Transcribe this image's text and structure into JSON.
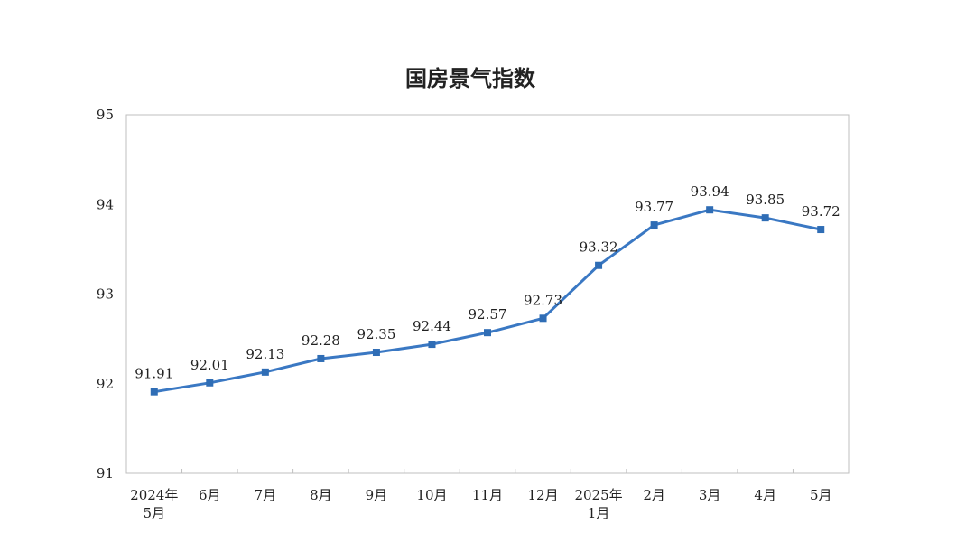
{
  "chart_data": {
    "type": "line",
    "title": "国房景气指数",
    "categories": [
      [
        "2024年",
        "5月"
      ],
      [
        "6月"
      ],
      [
        "7月"
      ],
      [
        "8月"
      ],
      [
        "9月"
      ],
      [
        "10月"
      ],
      [
        "11月"
      ],
      [
        "12月"
      ],
      [
        "2025年",
        "1月"
      ],
      [
        "2月"
      ],
      [
        "3月"
      ],
      [
        "4月"
      ],
      [
        "5月"
      ]
    ],
    "values": [
      91.91,
      92.01,
      92.13,
      92.28,
      92.35,
      92.44,
      92.57,
      92.73,
      93.32,
      93.77,
      93.94,
      93.85,
      93.72
    ],
    "value_labels": [
      "91.91",
      "92.01",
      "92.13",
      "92.28",
      "92.35",
      "92.44",
      "92.57",
      "92.73",
      "93.32",
      "93.77",
      "93.94",
      "93.85",
      "93.72"
    ],
    "ylim": [
      91,
      95
    ],
    "yticks": [
      "91",
      "92",
      "93",
      "94",
      "95"
    ],
    "grid": false,
    "legend": "none",
    "colors": {
      "line": "#3a78c3",
      "marker": "#2f6db5",
      "axis": "#bfbfbf"
    }
  }
}
